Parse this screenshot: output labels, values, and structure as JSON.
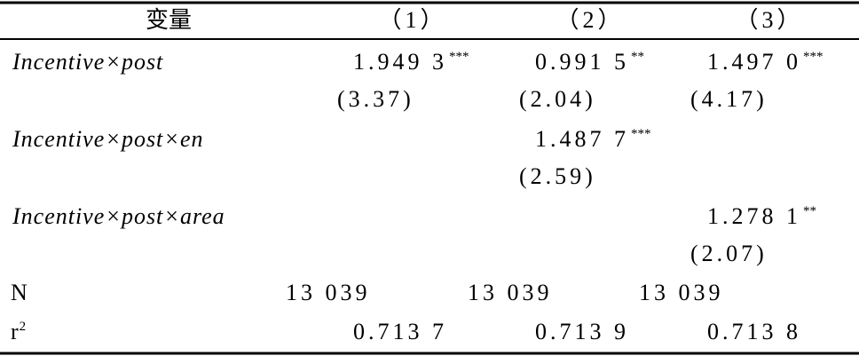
{
  "header": {
    "columns": [
      "变量",
      "（1）",
      "（2）",
      "（3）"
    ]
  },
  "table": {
    "rows": [
      {
        "label": [
          "Incentive",
          "×",
          "post"
        ],
        "cells": {
          "col1": {
            "coef": "1.949 3",
            "stars": "***",
            "t": "(3.37)"
          },
          "col2": {
            "coef": "0.991 5",
            "stars": "**",
            "t": "(2.04)"
          },
          "col3": {
            "coef": "1.497 0",
            "stars": "***",
            "t": "(4.17)"
          }
        }
      },
      {
        "label": [
          "Incentive",
          "×",
          "post",
          "×",
          "en"
        ],
        "cells": {
          "col2": {
            "coef": "1.487 7",
            "stars": "***",
            "t": "(2.59)"
          }
        }
      },
      {
        "label": [
          "Incentive",
          "×",
          "post",
          "×",
          "area"
        ],
        "cells": {
          "col3": {
            "coef": "1.278 1",
            "stars": "**",
            "t": "(2.07)"
          }
        }
      }
    ],
    "n_row": {
      "label": "N",
      "values": [
        "13 039",
        "13 039",
        "13 039"
      ]
    },
    "r2_row": {
      "label": "r",
      "label_sup": "2",
      "values": [
        "0.713 7",
        "0.713 9",
        "0.713 8"
      ]
    }
  }
}
